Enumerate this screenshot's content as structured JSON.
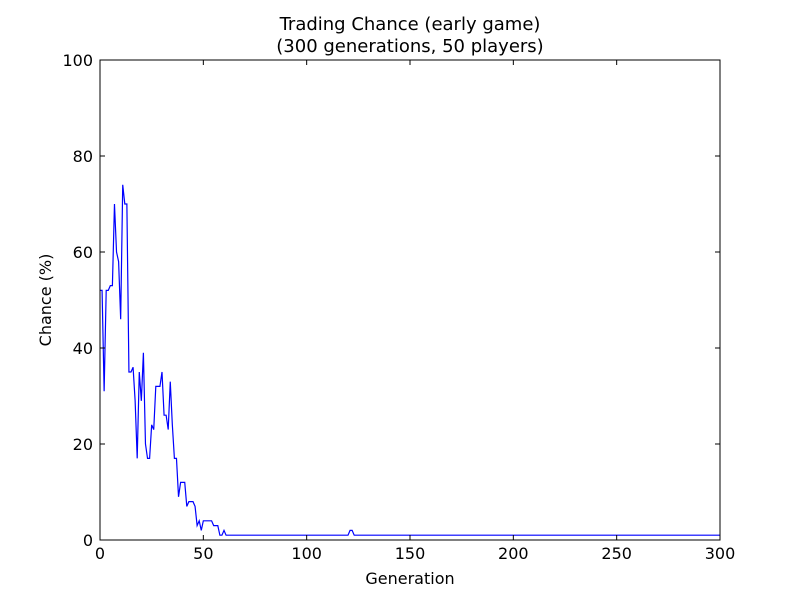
{
  "chart_data": {
    "type": "line",
    "title": "Trading Chance (early game)",
    "subtitle": "(300 generations, 50 players)",
    "xlabel": "Generation",
    "ylabel": "Chance (%)",
    "xlim": [
      0,
      300
    ],
    "ylim": [
      0,
      100
    ],
    "xticks": [
      "0",
      "50",
      "100",
      "150",
      "200",
      "250",
      "300"
    ],
    "yticks": [
      "0",
      "20",
      "40",
      "60",
      "80",
      "100"
    ],
    "grid": false,
    "legend": "none",
    "series": [
      {
        "color": "#0000ff",
        "x": [
          0,
          1,
          2,
          3,
          4,
          5,
          6,
          7,
          8,
          9,
          10,
          11,
          12,
          13,
          14,
          15,
          16,
          17,
          18,
          19,
          20,
          21,
          22,
          23,
          24,
          25,
          26,
          27,
          28,
          29,
          30,
          31,
          32,
          33,
          34,
          35,
          36,
          37,
          38,
          39,
          40,
          41,
          42,
          43,
          44,
          45,
          46,
          47,
          48,
          49,
          50,
          51,
          52,
          53,
          54,
          55,
          56,
          57,
          58,
          59,
          60,
          61,
          62,
          120,
          121,
          122,
          123,
          300
        ],
        "values": [
          52,
          52,
          31,
          52,
          52,
          53,
          53,
          70,
          60,
          58,
          46,
          74,
          70,
          70,
          35,
          35,
          36,
          29,
          17,
          35,
          29,
          39,
          20,
          17,
          17,
          24,
          23,
          32,
          32,
          32,
          35,
          26,
          26,
          23,
          33,
          24,
          17,
          17,
          9,
          12,
          12,
          12,
          7,
          8,
          8,
          8,
          7,
          3,
          4,
          2,
          4,
          4,
          4,
          4,
          4,
          3,
          3,
          3,
          1,
          1,
          2,
          1,
          1,
          1,
          2,
          2,
          1,
          1
        ]
      }
    ]
  }
}
